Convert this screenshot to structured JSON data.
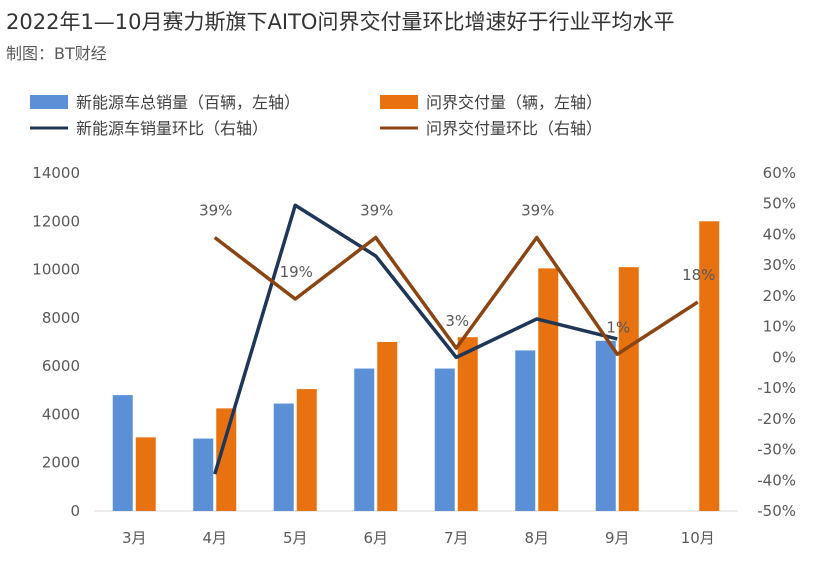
{
  "title": "2022年1—10月赛力斯旗下AITO问界交付量环比增速好于行业平均水平",
  "subtitle": "制图：BT财经",
  "chart_data": {
    "type": "bar",
    "categories": [
      "3月",
      "4月",
      "5月",
      "6月",
      "7月",
      "8月",
      "9月",
      "10月"
    ],
    "series": [
      {
        "name": "新能源车总销量（百辆，左轴）",
        "kind": "bar",
        "axis": "left",
        "color": "#5b8fd6",
        "values": [
          4800,
          3000,
          4450,
          5900,
          5900,
          6650,
          7050,
          null
        ]
      },
      {
        "name": "问界交付量（辆，左轴）",
        "kind": "bar",
        "axis": "left",
        "color": "#e8720f",
        "values": [
          3050,
          4250,
          5050,
          7000,
          7200,
          10050,
          10100,
          12000
        ]
      },
      {
        "name": "新能源车销量环比（右轴）",
        "kind": "line",
        "axis": "right",
        "color": "#1f3657",
        "values": [
          null,
          -38,
          49.5,
          33,
          0,
          12.5,
          6,
          null
        ]
      },
      {
        "name": "问界交付量环比（右轴）",
        "kind": "line",
        "axis": "right",
        "color": "#8b4513",
        "values": [
          null,
          39,
          19,
          39,
          3,
          39,
          1,
          18
        ]
      }
    ],
    "data_labels": [
      {
        "category": "4月",
        "text": "39%"
      },
      {
        "category": "5月",
        "text": "19%"
      },
      {
        "category": "6月",
        "text": "39%"
      },
      {
        "category": "7月",
        "text": "3%"
      },
      {
        "category": "8月",
        "text": "39%"
      },
      {
        "category": "9月",
        "text": "1%"
      },
      {
        "category": "10月",
        "text": "18%"
      }
    ],
    "left_axis": {
      "ticks": [
        "0",
        "2000",
        "4000",
        "6000",
        "8000",
        "10000",
        "12000",
        "14000"
      ],
      "min": 0,
      "max": 14000
    },
    "right_axis": {
      "ticks": [
        "-50%",
        "-40%",
        "-30%",
        "-20%",
        "-10%",
        "0%",
        "10%",
        "20%",
        "30%",
        "40%",
        "50%",
        "60%"
      ],
      "min": -50,
      "max": 60
    },
    "grid": false,
    "legend_position": "top-left"
  }
}
